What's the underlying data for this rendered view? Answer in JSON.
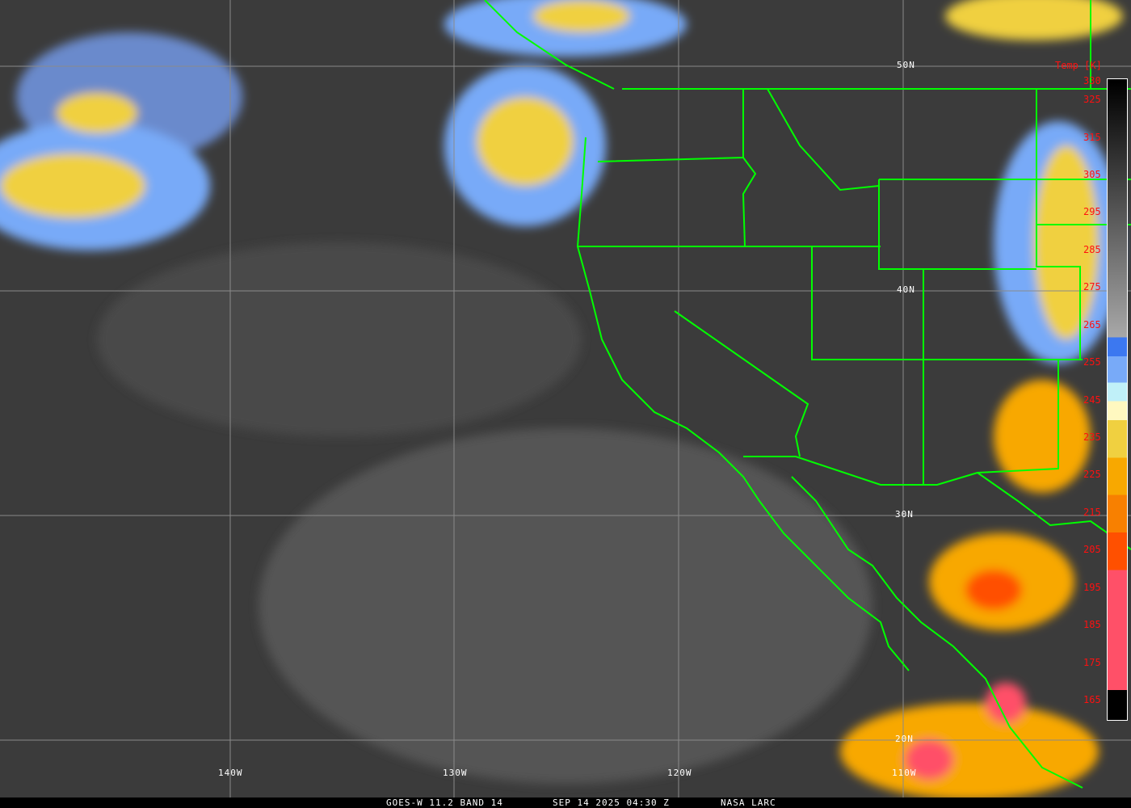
{
  "footer": {
    "satellite": "GOES-W 11.2 BAND 14",
    "datetime": "SEP 14 2025 04:30 Z",
    "credit": "NASA LARC"
  },
  "colorbar": {
    "title": "Temp [K]",
    "ticks": [
      "330",
      "325",
      "315",
      "305",
      "295",
      "285",
      "275",
      "265",
      "255",
      "245",
      "235",
      "225",
      "215",
      "205",
      "195",
      "185",
      "175",
      "165"
    ],
    "range_k": [
      165,
      330
    ],
    "bands": [
      {
        "from": 330,
        "to": 262,
        "color": "grayscale black-to-light"
      },
      {
        "from": 262,
        "to": 257,
        "color": "#3c78f0"
      },
      {
        "from": 257,
        "to": 250,
        "color": "#78aaf8"
      },
      {
        "from": 250,
        "to": 245,
        "color": "#c0f0f8"
      },
      {
        "from": 245,
        "to": 240,
        "color": "#fff8c0"
      },
      {
        "from": 240,
        "to": 230,
        "color": "#f0d040"
      },
      {
        "from": 230,
        "to": 220,
        "color": "#f8a800"
      },
      {
        "from": 220,
        "to": 210,
        "color": "#f88000"
      },
      {
        "from": 210,
        "to": 200,
        "color": "#ff5000"
      },
      {
        "from": 200,
        "to": 168,
        "color": "#ff5068"
      },
      {
        "from": 168,
        "to": 165,
        "color": "#000000"
      }
    ]
  },
  "grid": {
    "lat_labels": [
      "50N",
      "40N",
      "30N",
      "20N"
    ],
    "lon_labels": [
      "140W",
      "130W",
      "120W",
      "110W"
    ]
  },
  "colors": {
    "borders": "#00ff00",
    "labels": "#ff1010",
    "grid": "#8a8a8a"
  }
}
